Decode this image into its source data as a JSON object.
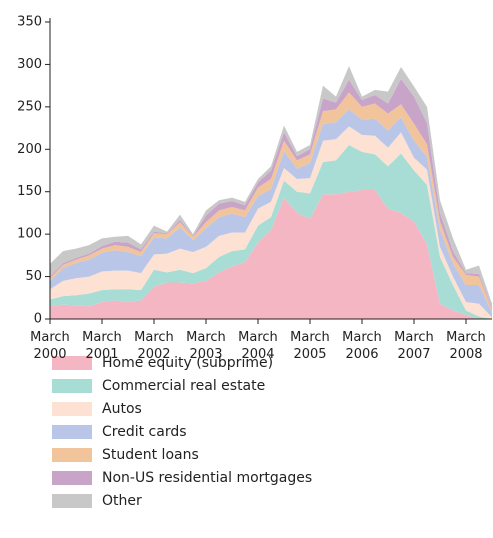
{
  "chart_data": {
    "type": "stacked_area",
    "categories": [
      "March 2000",
      null,
      null,
      null,
      "March 2001",
      null,
      null,
      null,
      "March 2002",
      null,
      null,
      null,
      "March 2003",
      null,
      null,
      null,
      "March 2004",
      null,
      null,
      null,
      "March 2005",
      null,
      null,
      null,
      "March 2006",
      null,
      null,
      null,
      "March 2007",
      null,
      null,
      null,
      "March 2008",
      null,
      null
    ],
    "series": [
      {
        "name": "Home equity (subprime)",
        "color": "#f4b6c3",
        "values": [
          15,
          17,
          16,
          15,
          20,
          22,
          20,
          22,
          38,
          43,
          43,
          42,
          45,
          55,
          62,
          67,
          90,
          105,
          143,
          125,
          118,
          147,
          147,
          150,
          152,
          152,
          130,
          125,
          115,
          88,
          18,
          10,
          5,
          0,
          0
        ]
      },
      {
        "name": "Commercial real estate",
        "color": "#a8ddd6",
        "values": [
          8,
          10,
          12,
          15,
          14,
          13,
          15,
          12,
          20,
          12,
          15,
          12,
          15,
          18,
          18,
          15,
          20,
          15,
          20,
          25,
          30,
          38,
          40,
          55,
          45,
          42,
          50,
          70,
          60,
          70,
          55,
          30,
          5,
          3,
          0
        ]
      },
      {
        "name": "Autos",
        "color": "#fde1d2",
        "values": [
          12,
          18,
          20,
          20,
          22,
          22,
          22,
          20,
          18,
          22,
          25,
          25,
          25,
          25,
          22,
          20,
          20,
          18,
          15,
          15,
          18,
          25,
          25,
          22,
          20,
          22,
          22,
          25,
          15,
          18,
          12,
          10,
          10,
          15,
          2
        ]
      },
      {
        "name": "Credit cards",
        "color": "#b9c6e8",
        "values": [
          10,
          15,
          18,
          20,
          22,
          24,
          22,
          20,
          20,
          18,
          25,
          14,
          22,
          22,
          22,
          18,
          15,
          15,
          20,
          12,
          18,
          20,
          20,
          20,
          18,
          20,
          20,
          18,
          20,
          15,
          20,
          15,
          20,
          22,
          5
        ]
      },
      {
        "name": "Student loans",
        "color": "#f2c49c",
        "values": [
          3,
          4,
          4,
          5,
          5,
          6,
          6,
          5,
          5,
          5,
          6,
          4,
          7,
          8,
          8,
          8,
          10,
          12,
          12,
          10,
          10,
          15,
          15,
          20,
          15,
          18,
          20,
          15,
          20,
          15,
          10,
          8,
          12,
          10,
          3
        ]
      },
      {
        "name": "Non-US residential mortgages",
        "color": "#c9a4c9",
        "values": [
          2,
          2,
          2,
          2,
          3,
          4,
          5,
          3,
          2,
          1,
          3,
          1,
          8,
          8,
          7,
          6,
          6,
          10,
          10,
          5,
          6,
          15,
          8,
          15,
          8,
          10,
          12,
          30,
          32,
          25,
          10,
          7,
          2,
          3,
          2
        ]
      },
      {
        "name": "Other",
        "color": "#c8c8c8",
        "values": [
          15,
          14,
          11,
          10,
          9,
          6,
          8,
          6,
          7,
          2,
          6,
          2,
          6,
          4,
          4,
          4,
          4,
          5,
          8,
          5,
          5,
          15,
          7,
          16,
          4,
          6,
          14,
          14,
          12,
          19,
          15,
          15,
          4,
          10,
          6
        ]
      }
    ],
    "ylim": [
      0,
      350
    ],
    "yticks": [
      0,
      50,
      100,
      150,
      200,
      250,
      300,
      350
    ]
  }
}
